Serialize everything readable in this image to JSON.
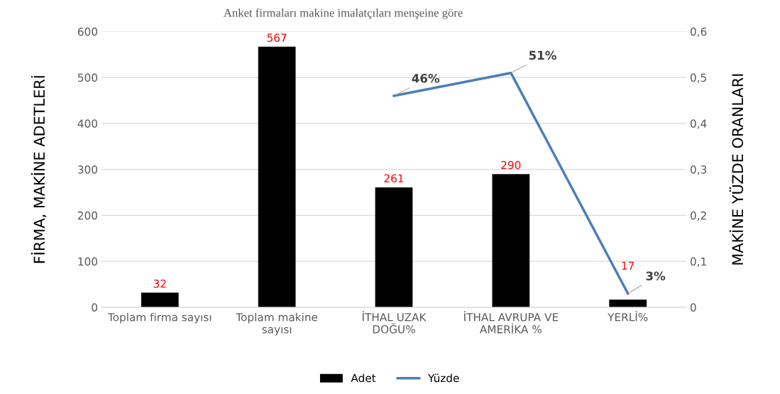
{
  "chart_data": {
    "type": "bar",
    "title": "Anket firmaları makine imalatçıları menşeine göre",
    "categories": [
      "Toplam firma sayısı",
      "Toplam makine sayısı",
      "İTHAL UZAK DOĞU%",
      "İTHAL AVRUPA VE AMERİKA %",
      "YERLİ%"
    ],
    "series": [
      {
        "name": "Adet",
        "color": "#000000",
        "values": [
          32,
          567,
          261,
          290,
          17
        ],
        "value_labels": [
          "32",
          "567",
          "261",
          "290",
          "17"
        ]
      },
      {
        "name": "Yüzde",
        "type": "line",
        "axis": "y2",
        "color": "#4a7ebb",
        "values": [
          null,
          null,
          0.46,
          0.51,
          0.03
        ],
        "value_labels": [
          null,
          null,
          "46%",
          "51%",
          "3%"
        ]
      }
    ],
    "ylabel": "FİRMA, MAKİNE ADETLERİ",
    "y2label": "MAKİNE YÜZDE ORANLARI",
    "ylim": [
      0,
      600
    ],
    "yticks": [
      0,
      100,
      200,
      300,
      400,
      500,
      600
    ],
    "y2lim": [
      0,
      0.6
    ],
    "y2ticks": [
      {
        "value": 0,
        "label": "0"
      },
      {
        "value": 0.1,
        "label": "0,1"
      },
      {
        "value": 0.2,
        "label": "0,2"
      },
      {
        "value": 0.3,
        "label": "0,3"
      },
      {
        "value": 0.4,
        "label": "0,4"
      },
      {
        "value": 0.5,
        "label": "0,5"
      },
      {
        "value": 0.6,
        "label": "0,6"
      }
    ],
    "grid": "y",
    "legend": "bottom",
    "marker": "none",
    "line_style": "solid"
  }
}
